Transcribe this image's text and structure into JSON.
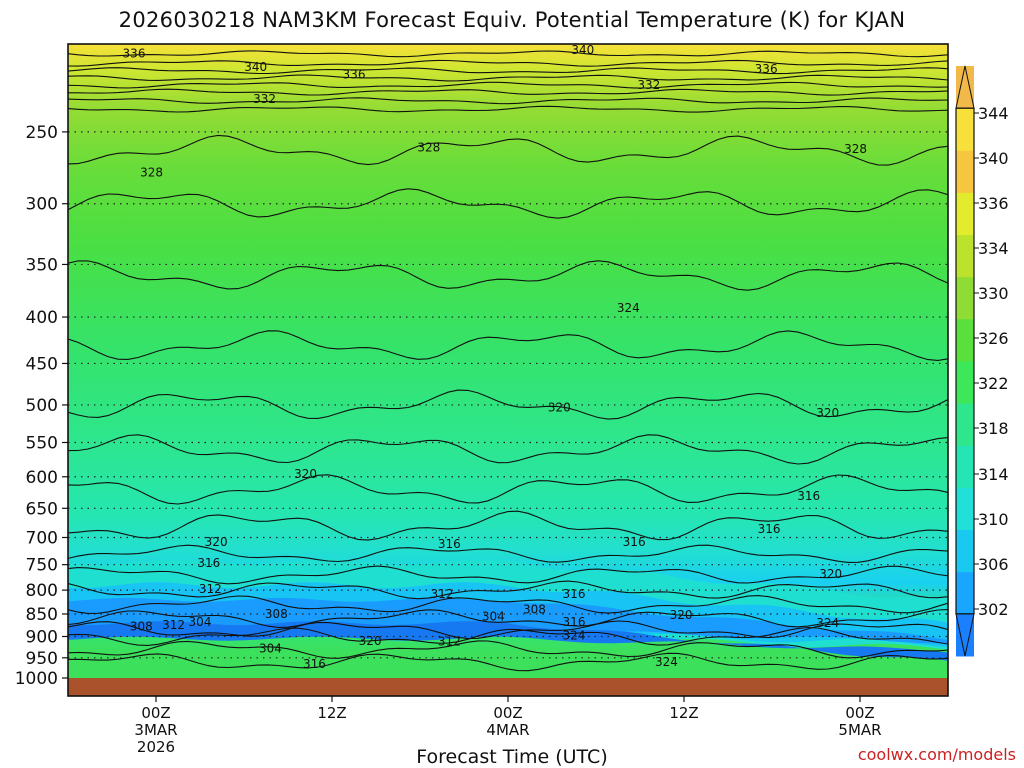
{
  "title": "2026030218 NAM3KM Forecast Equiv. Potential Temperature (K) for KJAN",
  "credit": "coolwx.com/models",
  "chart_data": {
    "type": "heatmap",
    "title": "2026030218 NAM3KM Forecast Equiv. Potential Temperature (K) for KJAN",
    "xlabel": "Forecast Time (UTC)",
    "ylabel": "",
    "x_ticks": [
      {
        "hours": 6,
        "lines": [
          "00Z",
          "3MAR",
          "2026"
        ]
      },
      {
        "hours": 18,
        "lines": [
          "12Z"
        ]
      },
      {
        "hours": 30,
        "lines": [
          "00Z",
          "4MAR"
        ]
      },
      {
        "hours": 42,
        "lines": [
          "12Z"
        ]
      },
      {
        "hours": 54,
        "lines": [
          "00Z",
          "5MAR"
        ]
      }
    ],
    "xlim_hours": [
      0,
      60
    ],
    "y_ticks": [
      250,
      300,
      350,
      400,
      450,
      500,
      550,
      600,
      650,
      700,
      750,
      800,
      850,
      900,
      950,
      1000
    ],
    "ylim": [
      1000,
      200
    ],
    "y_scale": "log",
    "colorbar": {
      "ticks": [
        302,
        306,
        310,
        314,
        318,
        322,
        326,
        330,
        334,
        336,
        340,
        344
      ],
      "colors": [
        "#1a80ff",
        "#19a6ff",
        "#1ac9f0",
        "#20e0d8",
        "#23e6b4",
        "#2ee68c",
        "#3ce85a",
        "#59e03c",
        "#8fdc34",
        "#bce22e",
        "#e3ec2c",
        "#f6c640",
        "#f7e03a",
        "#f1b84a"
      ]
    },
    "contour_labels": [
      {
        "v": 336,
        "t": 4.5,
        "p": 205
      },
      {
        "v": 340,
        "t": 12.8,
        "p": 212
      },
      {
        "v": 336,
        "t": 19.5,
        "p": 216
      },
      {
        "v": 340,
        "t": 35.1,
        "p": 203
      },
      {
        "v": 336,
        "t": 47.6,
        "p": 213
      },
      {
        "v": 332,
        "t": 13.4,
        "p": 230
      },
      {
        "v": 332,
        "t": 39.6,
        "p": 222
      },
      {
        "v": 328,
        "t": 24.6,
        "p": 260
      },
      {
        "v": 328,
        "t": 53.7,
        "p": 261
      },
      {
        "v": 328,
        "t": 5.7,
        "p": 277
      },
      {
        "v": 324,
        "t": 38.2,
        "p": 391
      },
      {
        "v": 320,
        "t": 33.5,
        "p": 503
      },
      {
        "v": 320,
        "t": 51.8,
        "p": 510
      },
      {
        "v": 320,
        "t": 16.2,
        "p": 596
      },
      {
        "v": 316,
        "t": 50.5,
        "p": 630
      },
      {
        "v": 320,
        "t": 10.1,
        "p": 708
      },
      {
        "v": 316,
        "t": 26.0,
        "p": 712
      },
      {
        "v": 316,
        "t": 38.6,
        "p": 708
      },
      {
        "v": 316,
        "t": 47.8,
        "p": 685
      },
      {
        "v": 316,
        "t": 9.6,
        "p": 747
      },
      {
        "v": 320,
        "t": 52.0,
        "p": 768
      },
      {
        "v": 312,
        "t": 9.7,
        "p": 798
      },
      {
        "v": 312,
        "t": 25.5,
        "p": 808
      },
      {
        "v": 316,
        "t": 34.5,
        "p": 808
      },
      {
        "v": 308,
        "t": 14.2,
        "p": 850
      },
      {
        "v": 308,
        "t": 31.8,
        "p": 840
      },
      {
        "v": 304,
        "t": 29.0,
        "p": 855
      },
      {
        "v": 316,
        "t": 34.5,
        "p": 868
      },
      {
        "v": 320,
        "t": 41.8,
        "p": 852
      },
      {
        "v": 324,
        "t": 51.8,
        "p": 870
      },
      {
        "v": 308,
        "t": 5.0,
        "p": 878
      },
      {
        "v": 312,
        "t": 7.2,
        "p": 874
      },
      {
        "v": 304,
        "t": 9.0,
        "p": 868
      },
      {
        "v": 324,
        "t": 34.5,
        "p": 898
      },
      {
        "v": 320,
        "t": 20.6,
        "p": 910
      },
      {
        "v": 312,
        "t": 26.0,
        "p": 912
      },
      {
        "v": 304,
        "t": 13.8,
        "p": 928
      },
      {
        "v": 316,
        "t": 16.8,
        "p": 965
      },
      {
        "v": 324,
        "t": 40.8,
        "p": 960
      }
    ]
  }
}
